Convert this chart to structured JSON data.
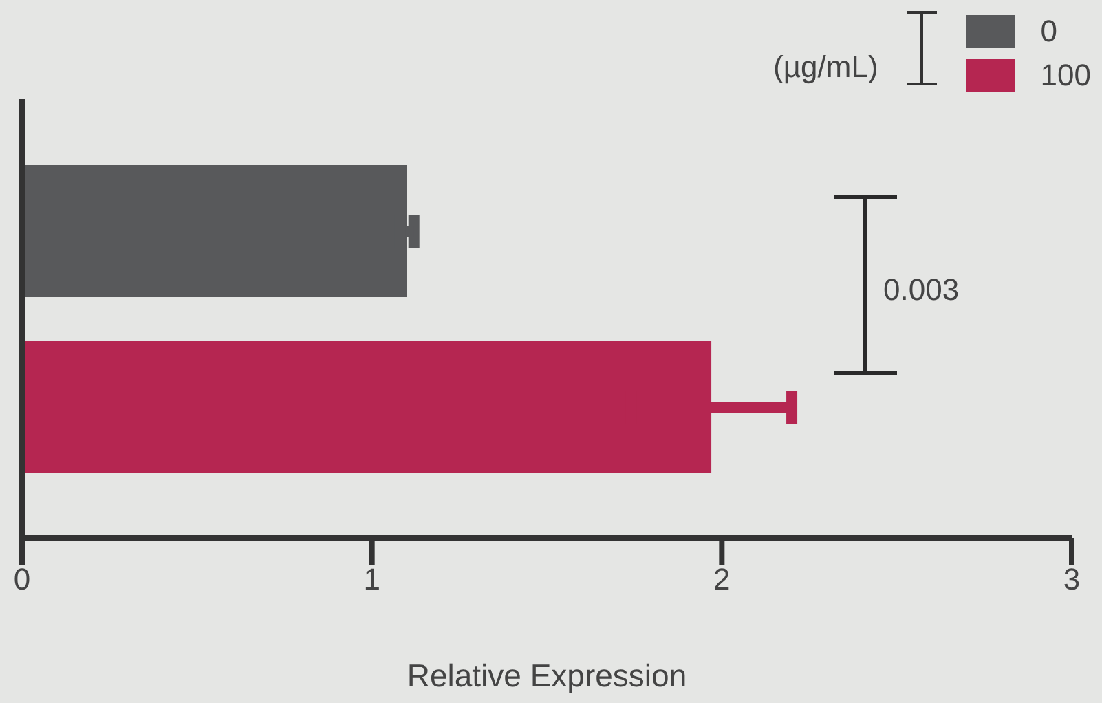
{
  "chart_data": {
    "type": "bar",
    "orientation": "horizontal",
    "xlabel": "Relative Expression",
    "legend_title": "(µg/mL)",
    "legend": "top right",
    "categories": [
      null
    ],
    "series": [
      {
        "name": "0",
        "color": "#58595b",
        "values": [
          1.1
        ],
        "errors": [
          0.02
        ]
      },
      {
        "name": "100",
        "color": "#b52651",
        "values": [
          1.97
        ],
        "errors": [
          0.23
        ]
      }
    ],
    "xlim": [
      0,
      3
    ],
    "xticks": [
      0,
      1,
      2,
      3
    ],
    "grid": false,
    "annotations": [
      "0.003"
    ]
  }
}
